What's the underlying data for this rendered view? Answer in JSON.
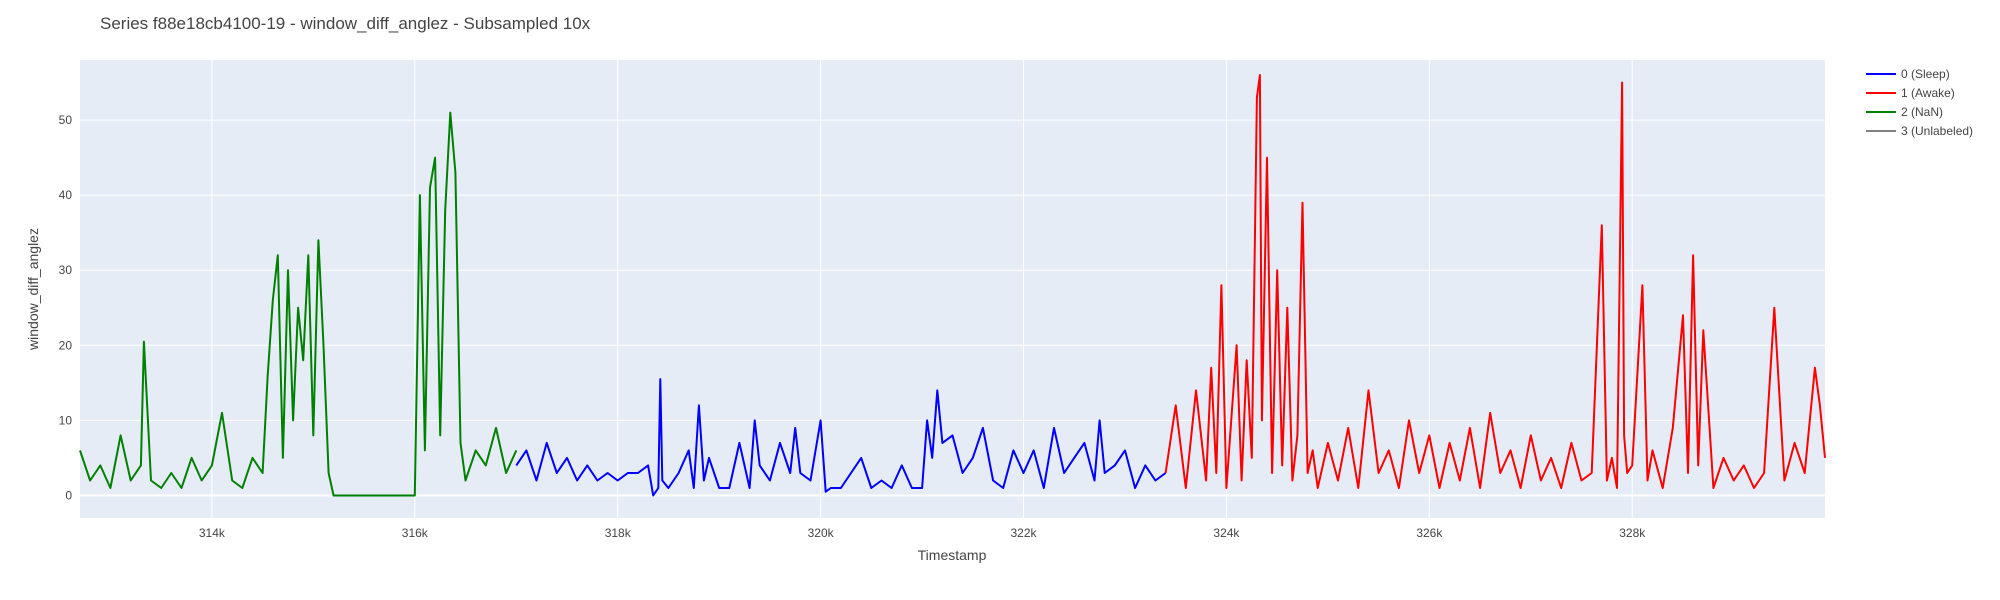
{
  "chart_data": {
    "type": "line",
    "title": "Series f88e18cb4100-19 - window_diff_anglez - Subsampled 10x",
    "xlabel": "Timestamp",
    "ylabel": "window_diff_anglez",
    "xlim": [
      312700,
      329900
    ],
    "ylim": [
      -3,
      58
    ],
    "x_ticks": [
      314000,
      316000,
      318000,
      320000,
      322000,
      324000,
      326000,
      328000
    ],
    "x_tick_labels": [
      "314k",
      "316k",
      "318k",
      "320k",
      "322k",
      "324k",
      "326k",
      "328k"
    ],
    "y_ticks": [
      0,
      10,
      20,
      30,
      40,
      50
    ],
    "y_tick_labels": [
      "0",
      "10",
      "20",
      "30",
      "40",
      "50"
    ],
    "grid": true,
    "legend_position": "top-right, outside plot",
    "series": [
      {
        "name": "0 (Sleep)",
        "color": "#0000ff",
        "x": [
          317000,
          317100,
          317200,
          317300,
          317400,
          317500,
          317600,
          317700,
          317800,
          317900,
          318000,
          318100,
          318200,
          318300,
          318350,
          318400,
          318420,
          318440,
          318500,
          318600,
          318700,
          318750,
          318800,
          318850,
          318900,
          319000,
          319100,
          319200,
          319300,
          319350,
          319400,
          319500,
          319600,
          319700,
          319750,
          319800,
          319900,
          320000,
          320050,
          320100,
          320200,
          320300,
          320400,
          320500,
          320600,
          320700,
          320800,
          320900,
          321000,
          321050,
          321100,
          321150,
          321200,
          321300,
          321400,
          321500,
          321600,
          321700,
          321800,
          321900,
          322000,
          322100,
          322200,
          322300,
          322400,
          322500,
          322600,
          322700,
          322750,
          322800,
          322900,
          323000,
          323100,
          323200,
          323300,
          323400
        ],
        "y": [
          4,
          6,
          2,
          7,
          3,
          5,
          2,
          4,
          2,
          3,
          2,
          3,
          3,
          4,
          0,
          1,
          15.5,
          2,
          1,
          3,
          6,
          1,
          12,
          2,
          5,
          1,
          1,
          7,
          1,
          10,
          4,
          2,
          7,
          3,
          9,
          3,
          2,
          10,
          0.5,
          1,
          1,
          3,
          5,
          1,
          2,
          1,
          4,
          1,
          1,
          10,
          5,
          14,
          7,
          8,
          3,
          5,
          9,
          2,
          1,
          6,
          3,
          6,
          1,
          9,
          3,
          5,
          7,
          2,
          10,
          3,
          4,
          6,
          1,
          4,
          2,
          3
        ]
      },
      {
        "name": "1 (Awake)",
        "color": "#ff0000",
        "x": [
          323400,
          323500,
          323600,
          323700,
          323800,
          323850,
          323900,
          323950,
          324000,
          324100,
          324150,
          324200,
          324250,
          324300,
          324330,
          324350,
          324400,
          324450,
          324500,
          324550,
          324600,
          324650,
          324700,
          324750,
          324800,
          324850,
          324900,
          325000,
          325100,
          325200,
          325300,
          325400,
          325500,
          325600,
          325700,
          325800,
          325900,
          326000,
          326100,
          326200,
          326300,
          326400,
          326500,
          326600,
          326700,
          326800,
          326900,
          327000,
          327100,
          327200,
          327300,
          327400,
          327500,
          327600,
          327700,
          327750,
          327800,
          327850,
          327900,
          327920,
          327950,
          328000,
          328100,
          328150,
          328200,
          328300,
          328400,
          328500,
          328550,
          328600,
          328650,
          328700,
          328800,
          328900,
          329000,
          329100,
          329200,
          329300,
          329400,
          329500,
          329600,
          329700,
          329800,
          329850,
          329900
        ],
        "y": [
          3,
          12,
          1,
          14,
          2,
          17,
          3,
          28,
          1,
          20,
          2,
          18,
          5,
          53,
          56,
          10,
          45,
          3,
          30,
          4,
          25,
          2,
          8,
          39,
          3,
          6,
          1,
          7,
          2,
          9,
          1,
          14,
          3,
          6,
          1,
          10,
          3,
          8,
          1,
          7,
          2,
          9,
          1,
          11,
          3,
          6,
          1,
          8,
          2,
          5,
          1,
          7,
          2,
          3,
          36,
          2,
          5,
          1,
          55,
          8,
          3,
          4,
          28,
          2,
          6,
          1,
          9,
          24,
          3,
          32,
          4,
          22,
          1,
          5,
          2,
          4,
          1,
          3,
          25,
          2,
          7,
          3,
          17,
          12,
          5
        ]
      },
      {
        "name": "2 (NaN)",
        "color": "#008000",
        "x": [
          312700,
          312800,
          312900,
          313000,
          313100,
          313200,
          313300,
          313330,
          313400,
          313500,
          313600,
          313700,
          313800,
          313900,
          314000,
          314100,
          314200,
          314300,
          314400,
          314500,
          314550,
          314600,
          314650,
          314700,
          314750,
          314800,
          314850,
          314900,
          314950,
          315000,
          315050,
          315100,
          315150,
          315200,
          315400,
          315600,
          315800,
          316000,
          316050,
          316100,
          316150,
          316200,
          316250,
          316300,
          316350,
          316400,
          316450,
          316500,
          316600,
          316700,
          316800,
          316900,
          317000
        ],
        "y": [
          6,
          2,
          4,
          1,
          8,
          2,
          4,
          20.5,
          2,
          1,
          3,
          1,
          5,
          2,
          4,
          11,
          2,
          1,
          5,
          3,
          16,
          26,
          32,
          5,
          30,
          10,
          25,
          18,
          32,
          8,
          34,
          20,
          3,
          0,
          0,
          0,
          0,
          0,
          40,
          6,
          41,
          45,
          8,
          38,
          51,
          43,
          7,
          2,
          6,
          4,
          9,
          3,
          6
        ]
      },
      {
        "name": "3 (Unlabeled)",
        "color": "#808080",
        "x": [],
        "y": []
      }
    ]
  }
}
